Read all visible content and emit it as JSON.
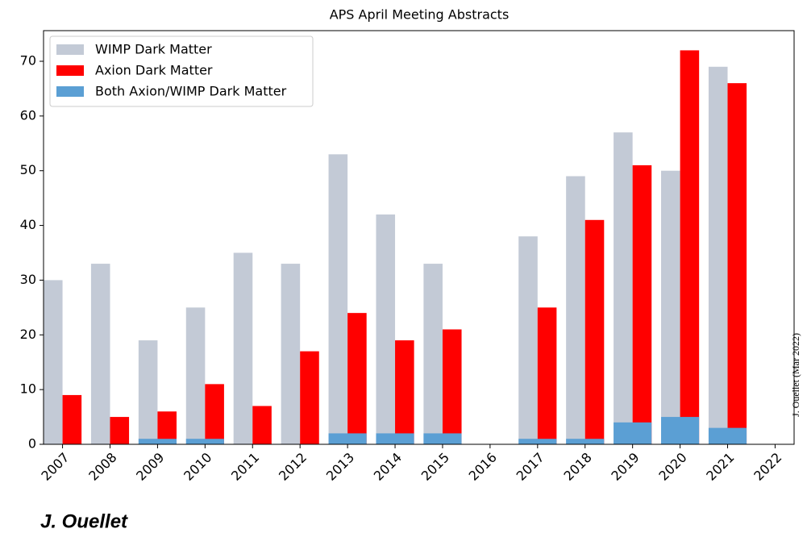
{
  "chart_data": {
    "type": "bar",
    "title": "APS April Meeting Abstracts",
    "annotation": "J. Ouellet (Mar 2022)",
    "footer": "J. Ouellet",
    "categories": [
      "2007",
      "2008",
      "2009",
      "2010",
      "2011",
      "2012",
      "2013",
      "2014",
      "2015",
      "2016",
      "2017",
      "2018",
      "2019",
      "2020",
      "2021",
      "2022"
    ],
    "series": [
      {
        "name": "WIMP Dark Matter",
        "color": "#c3cad6",
        "values": [
          30,
          33,
          19,
          25,
          35,
          33,
          53,
          42,
          33,
          0,
          38,
          49,
          57,
          50,
          69,
          0
        ]
      },
      {
        "name": "Axion Dark Matter",
        "color": "#ff0000",
        "values": [
          9,
          5,
          6,
          11,
          7,
          17,
          24,
          19,
          21,
          0,
          25,
          41,
          51,
          72,
          66,
          0
        ]
      },
      {
        "name": "Both Axion/WIMP Dark Matter",
        "color": "#5b9fd4",
        "values": [
          0,
          0,
          1,
          1,
          0,
          0,
          2,
          2,
          2,
          0,
          1,
          1,
          4,
          5,
          3,
          0
        ]
      }
    ],
    "ylim": [
      0,
      75.6
    ],
    "yticks": [
      0,
      10,
      20,
      30,
      40,
      50,
      60,
      70
    ],
    "legend": "upper left",
    "grid": false
  }
}
